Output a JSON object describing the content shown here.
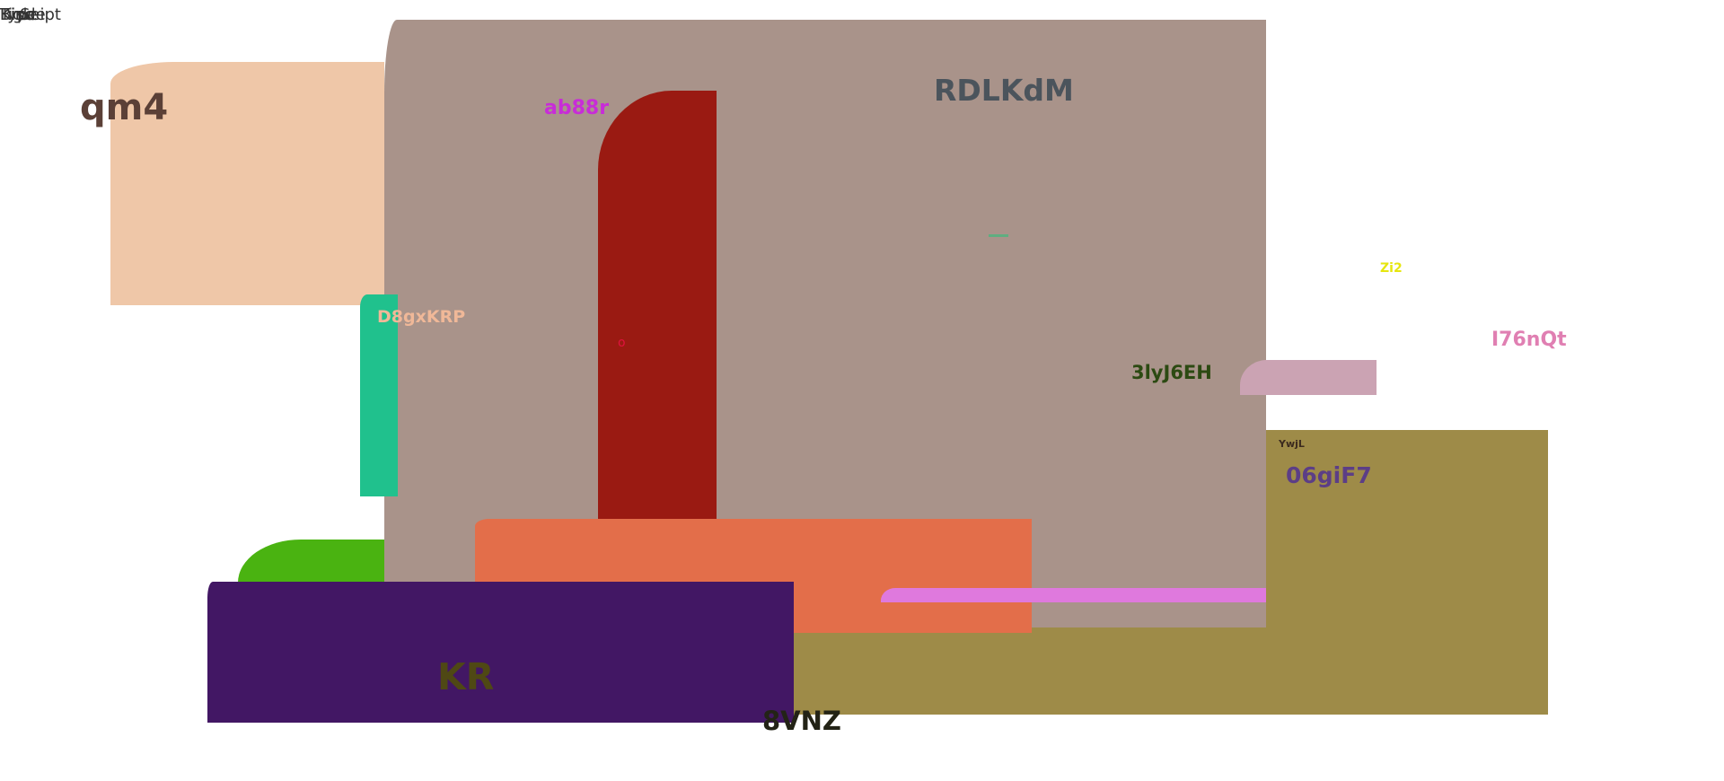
{
  "colors": {
    "background": "#ffffff",
    "peach": "#efc7a8",
    "taupe": "#a9938a",
    "crimson": "#9a1a12",
    "teal": "#20c18d",
    "green": "#4ab311",
    "coral": "#e36e4a",
    "indigo": "#421764",
    "olive": "#9e8b48",
    "pink_light": "#cba3b3",
    "magenta_bar": "#df79dd"
  },
  "top_left_overlap": [
    "Kinde",
    "Seipt",
    "Type",
    "Figle",
    "Bisc"
  ],
  "labels": {
    "qm4": "qm4",
    "ab88r": "ab88r",
    "RDLKdM": "RDLKdM",
    "Zi2": "Zi2",
    "I76nQt": "I76nQt",
    "D8gxKRP": "D8gxKRP",
    "o": "o",
    "3lyJ6EH": "3lyJ6EH",
    "YwjL": "YwjL",
    "06giF7": "06giF7",
    "KR": "KR",
    "8VNZ": "8VNZ"
  }
}
